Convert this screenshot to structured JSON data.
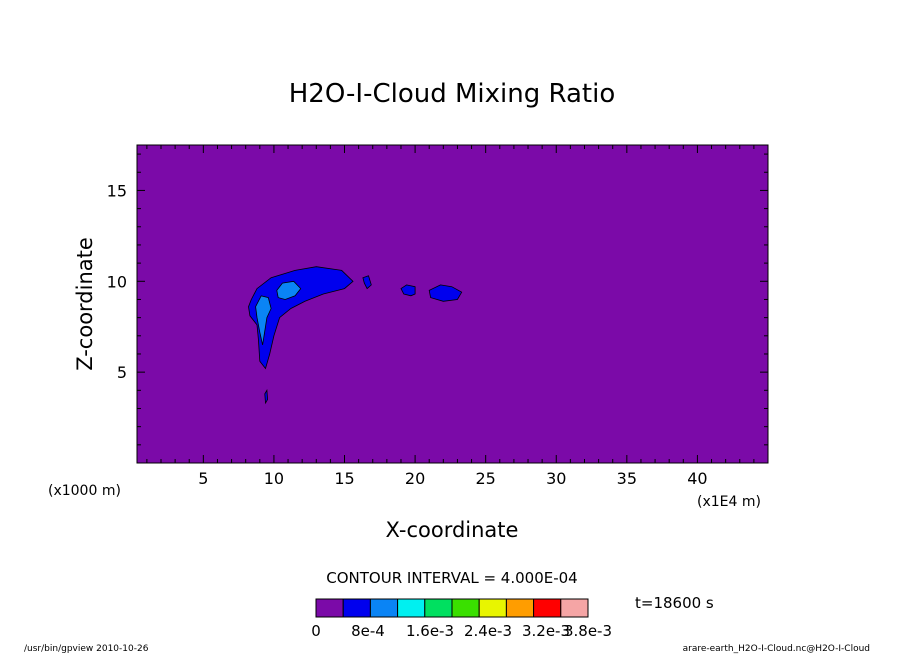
{
  "chart_data": {
    "type": "contour",
    "title": "H2O-I-Cloud Mixing Ratio",
    "xlabel": "X-coordinate",
    "ylabel": "Z-coordinate",
    "x_unit": "(x1E4 m)",
    "z_unit": "(x1000 m)",
    "xlim": [
      0.3,
      45
    ],
    "ylim": [
      0,
      17.5
    ],
    "x_ticks": [
      5,
      10,
      15,
      20,
      25,
      30,
      35,
      40
    ],
    "y_ticks": [
      5,
      10,
      15
    ],
    "contour_interval": "CONTOUR INTERVAL = 4.000E-04",
    "time_label": "t=18600 s",
    "colorbar": {
      "labels": [
        "0",
        "8e-4",
        "1.6e-3",
        "2.4e-3",
        "3.2e-3",
        "3.8e-3"
      ],
      "colors": [
        "#7b0aa8",
        "#0000ee",
        "#0a84f5",
        "#00f0f0",
        "#00e060",
        "#3ae000",
        "#e8f500",
        "#ff9d00",
        "#ff0000",
        "#f5a5a5"
      ]
    },
    "background_color": "#7b0aa8",
    "regions": [
      {
        "level": 1,
        "color": "#0000ee",
        "points": [
          [
            8.4,
            9.0
          ],
          [
            8.8,
            9.6
          ],
          [
            9.8,
            10.2
          ],
          [
            11.5,
            10.6
          ],
          [
            13.0,
            10.8
          ],
          [
            14.8,
            10.6
          ],
          [
            15.6,
            10.0
          ],
          [
            15.0,
            9.6
          ],
          [
            13.5,
            9.3
          ],
          [
            12.2,
            8.9
          ],
          [
            11.2,
            8.5
          ],
          [
            10.4,
            8.0
          ],
          [
            10.0,
            7.0
          ],
          [
            9.7,
            6.0
          ],
          [
            9.4,
            5.2
          ],
          [
            9.0,
            5.6
          ],
          [
            8.9,
            6.8
          ],
          [
            8.8,
            7.6
          ],
          [
            8.3,
            8.1
          ],
          [
            8.2,
            8.6
          ]
        ]
      },
      {
        "level": 1,
        "color": "#0000ee",
        "points": [
          [
            16.3,
            10.2
          ],
          [
            16.7,
            10.3
          ],
          [
            16.9,
            9.8
          ],
          [
            16.6,
            9.6
          ],
          [
            16.4,
            9.9
          ]
        ]
      },
      {
        "level": 1,
        "color": "#0000ee",
        "points": [
          [
            19.0,
            9.6
          ],
          [
            19.4,
            9.8
          ],
          [
            20.0,
            9.7
          ],
          [
            20.0,
            9.3
          ],
          [
            19.7,
            9.2
          ],
          [
            19.2,
            9.3
          ]
        ]
      },
      {
        "level": 1,
        "color": "#0000ee",
        "points": [
          [
            21.0,
            9.5
          ],
          [
            21.8,
            9.8
          ],
          [
            22.6,
            9.7
          ],
          [
            23.3,
            9.4
          ],
          [
            23.0,
            9.0
          ],
          [
            22.0,
            8.9
          ],
          [
            21.1,
            9.1
          ]
        ]
      },
      {
        "level": 1,
        "color": "#0000ee",
        "points": [
          [
            9.4,
            3.3
          ],
          [
            9.55,
            3.5
          ],
          [
            9.5,
            4.0
          ],
          [
            9.35,
            3.8
          ]
        ]
      },
      {
        "level": 2,
        "color": "#0a84f5",
        "points": [
          [
            10.2,
            9.5
          ],
          [
            10.6,
            9.9
          ],
          [
            11.4,
            10.0
          ],
          [
            11.9,
            9.6
          ],
          [
            11.5,
            9.2
          ],
          [
            10.8,
            9.0
          ],
          [
            10.3,
            9.1
          ]
        ]
      },
      {
        "level": 2,
        "color": "#0a84f5",
        "points": [
          [
            8.7,
            8.6
          ],
          [
            9.1,
            9.2
          ],
          [
            9.6,
            9.1
          ],
          [
            9.8,
            8.5
          ],
          [
            9.5,
            8.0
          ],
          [
            9.2,
            6.5
          ],
          [
            9.0,
            7.2
          ],
          [
            8.8,
            8.0
          ]
        ]
      }
    ]
  },
  "footer": {
    "left": "/usr/bin/gpview  2010-10-26",
    "right": "arare-earth_H2O-I-Cloud.nc@H2O-I-Cloud"
  }
}
